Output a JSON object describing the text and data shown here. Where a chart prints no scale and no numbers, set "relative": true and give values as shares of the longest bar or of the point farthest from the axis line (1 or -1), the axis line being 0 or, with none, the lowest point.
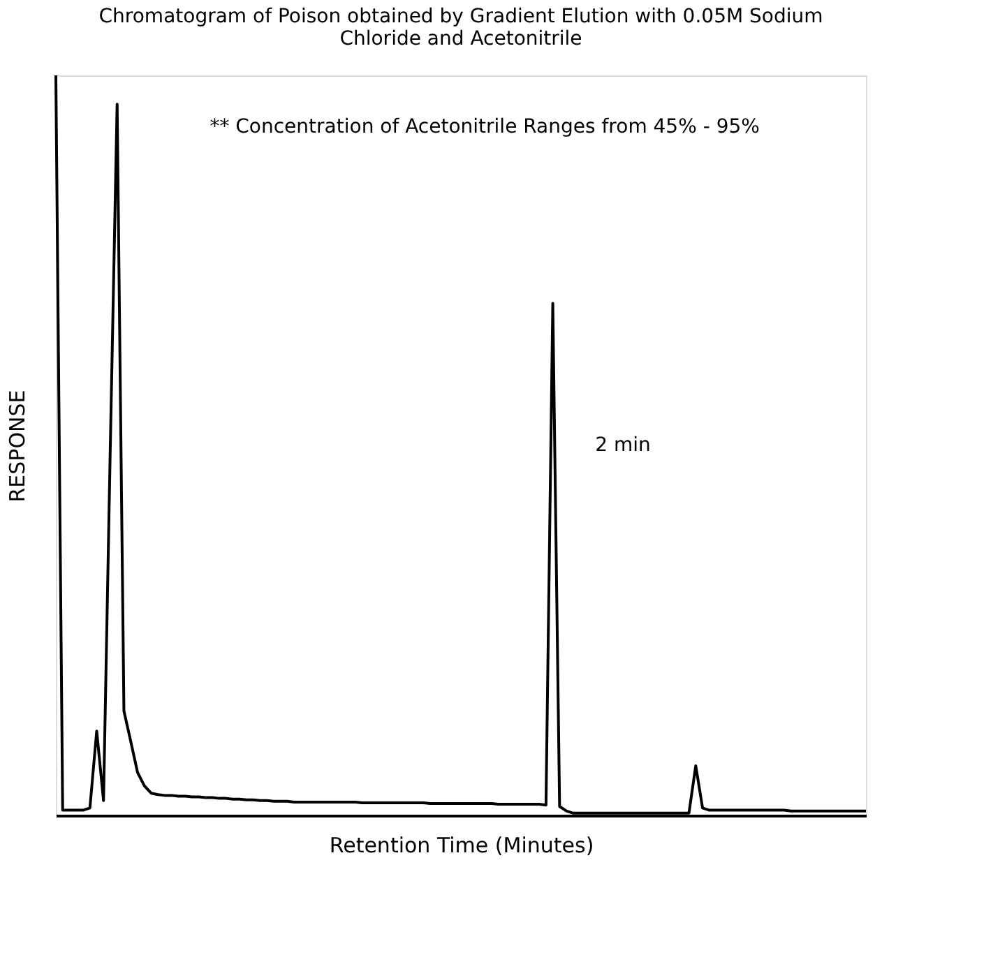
{
  "chart_data": {
    "type": "line",
    "title": "Chromatogram of Poison obtained by Gradient Elution with 0.05M Sodium Chloride and Acetonitrile",
    "xlabel": "Retention Time (Minutes)",
    "ylabel": "RESPONSE",
    "relative": true,
    "tick_labels": false,
    "grid": false,
    "marker": "none",
    "line_style": "solid",
    "annotations": [
      "** Concentration of Acetonitrile Ranges from 45% - 95%",
      "2 min"
    ],
    "categories": [
      null,
      null,
      null,
      null,
      null,
      null,
      null,
      null,
      null,
      null,
      null,
      null,
      null,
      null,
      null,
      null,
      null,
      null,
      null,
      null,
      null,
      null,
      null,
      null,
      null,
      null,
      null,
      null,
      null,
      null,
      null,
      null,
      null,
      null,
      null,
      null,
      null,
      null,
      null,
      null,
      null,
      null,
      null,
      null,
      null,
      null,
      null,
      null,
      null,
      null,
      null,
      null,
      null,
      null,
      null,
      null,
      null,
      null,
      null,
      null,
      null,
      null,
      null,
      null,
      null,
      null,
      null,
      null,
      null,
      null,
      null,
      null,
      null,
      null,
      null,
      null,
      null,
      null,
      null,
      null,
      null,
      null,
      null,
      null,
      null,
      null,
      null,
      null,
      null,
      null,
      null,
      null,
      null,
      null,
      null,
      null,
      null,
      null,
      null,
      null,
      null,
      null,
      null,
      null,
      null,
      null,
      null,
      null,
      null,
      null,
      null,
      null,
      null,
      null,
      null,
      null,
      null,
      null,
      null,
      null
    ],
    "series": [
      {
        "color": "#000000",
        "values": [
          1.0,
          0.007,
          0.007,
          0.007,
          0.007,
          0.01,
          0.114,
          0.02,
          0.5,
          0.961,
          0.141,
          0.1,
          0.058,
          0.04,
          0.03,
          0.028,
          0.027,
          0.027,
          0.026,
          0.026,
          0.025,
          0.025,
          0.024,
          0.024,
          0.023,
          0.023,
          0.022,
          0.022,
          0.021,
          0.021,
          0.02,
          0.02,
          0.019,
          0.019,
          0.019,
          0.018,
          0.018,
          0.018,
          0.018,
          0.018,
          0.018,
          0.018,
          0.018,
          0.018,
          0.018,
          0.017,
          0.017,
          0.017,
          0.017,
          0.017,
          0.017,
          0.017,
          0.017,
          0.017,
          0.017,
          0.016,
          0.016,
          0.016,
          0.016,
          0.016,
          0.016,
          0.016,
          0.016,
          0.016,
          0.016,
          0.015,
          0.015,
          0.015,
          0.015,
          0.015,
          0.015,
          0.015,
          0.014,
          0.692,
          0.012,
          0.006,
          0.003,
          0.003,
          0.003,
          0.003,
          0.003,
          0.003,
          0.003,
          0.003,
          0.003,
          0.003,
          0.003,
          0.003,
          0.003,
          0.003,
          0.003,
          0.003,
          0.003,
          0.003,
          0.067,
          0.01,
          0.007,
          0.007,
          0.007,
          0.007,
          0.007,
          0.007,
          0.007,
          0.007,
          0.007,
          0.007,
          0.007,
          0.007,
          0.006,
          0.006,
          0.006,
          0.006,
          0.006,
          0.006,
          0.006,
          0.006,
          0.006,
          0.006,
          0.006,
          0.006
        ]
      }
    ]
  }
}
